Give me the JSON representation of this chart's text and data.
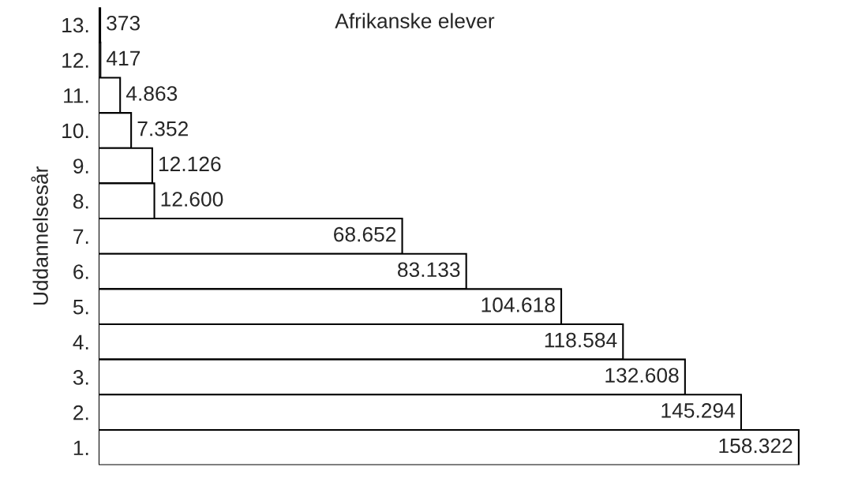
{
  "chart_data": {
    "type": "bar",
    "orientation": "horizontal",
    "title": "Afrikanske elever",
    "ylabel": "Uddannelsesår",
    "categories": [
      "13.",
      "12.",
      "11.",
      "10.",
      "9.",
      "8.",
      "7.",
      "6.",
      "5.",
      "4.",
      "3.",
      "2.",
      "1."
    ],
    "values": [
      373,
      417,
      4863,
      7352,
      12126,
      12600,
      68652,
      83133,
      104618,
      118584,
      132608,
      145294,
      158322
    ],
    "value_labels": [
      "373",
      "417",
      "4.863",
      "7.352",
      "12.126",
      "12.600",
      "68.652",
      "83.133",
      "104.618",
      "118.584",
      "132.608",
      "145.294",
      "158.322"
    ],
    "color": "#ffffff",
    "tick_labels": "y",
    "grid": false,
    "legend": false
  }
}
